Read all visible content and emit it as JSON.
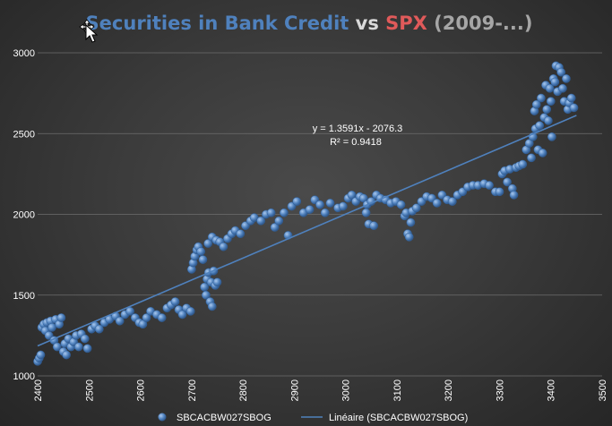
{
  "chart_data": {
    "type": "scatter",
    "title_parts": [
      {
        "text": "Securities in Bank Credit",
        "color": "#4f81bd"
      },
      {
        "text": " vs ",
        "color": "#d9d9d9"
      },
      {
        "text": "SPX",
        "color": "#e05a5a"
      },
      {
        "text": " (2009-...)",
        "color": "#a6a6a6"
      }
    ],
    "xlim": [
      2400,
      3500
    ],
    "ylim": [
      1000,
      3000
    ],
    "x_ticks": [
      "2400",
      "2500",
      "2600",
      "2700",
      "2800",
      "2900",
      "3000",
      "3100",
      "3200",
      "3300",
      "3400",
      "3500"
    ],
    "y_ticks": [
      "1000",
      "1500",
      "2000",
      "2500",
      "3000"
    ],
    "gridlines": "horizontal",
    "series": [
      {
        "name": "SBCACBW027SBOG",
        "color": "#4f81bd",
        "points": [
          [
            2400,
            1090
          ],
          [
            2403,
            1110
          ],
          [
            2406,
            1130
          ],
          [
            2408,
            1300
          ],
          [
            2412,
            1320
          ],
          [
            2415,
            1280
          ],
          [
            2418,
            1330
          ],
          [
            2422,
            1250
          ],
          [
            2425,
            1340
          ],
          [
            2428,
            1300
          ],
          [
            2432,
            1220
          ],
          [
            2435,
            1350
          ],
          [
            2438,
            1180
          ],
          [
            2442,
            1320
          ],
          [
            2446,
            1360
          ],
          [
            2450,
            1150
          ],
          [
            2453,
            1200
          ],
          [
            2456,
            1130
          ],
          [
            2460,
            1230
          ],
          [
            2465,
            1180
          ],
          [
            2470,
            1210
          ],
          [
            2475,
            1250
          ],
          [
            2480,
            1180
          ],
          [
            2485,
            1260
          ],
          [
            2492,
            1230
          ],
          [
            2497,
            1170
          ],
          [
            2505,
            1290
          ],
          [
            2512,
            1310
          ],
          [
            2520,
            1290
          ],
          [
            2530,
            1330
          ],
          [
            2540,
            1350
          ],
          [
            2552,
            1370
          ],
          [
            2560,
            1340
          ],
          [
            2570,
            1380
          ],
          [
            2580,
            1400
          ],
          [
            2590,
            1360
          ],
          [
            2598,
            1330
          ],
          [
            2605,
            1320
          ],
          [
            2612,
            1360
          ],
          [
            2620,
            1400
          ],
          [
            2632,
            1380
          ],
          [
            2642,
            1360
          ],
          [
            2652,
            1420
          ],
          [
            2660,
            1440
          ],
          [
            2668,
            1460
          ],
          [
            2675,
            1410
          ],
          [
            2682,
            1380
          ],
          [
            2690,
            1420
          ],
          [
            2698,
            1400
          ],
          [
            2700,
            1660
          ],
          [
            2703,
            1700
          ],
          [
            2706,
            1740
          ],
          [
            2710,
            1780
          ],
          [
            2713,
            1800
          ],
          [
            2718,
            1770
          ],
          [
            2722,
            1720
          ],
          [
            2725,
            1550
          ],
          [
            2728,
            1500
          ],
          [
            2730,
            1600
          ],
          [
            2733,
            1640
          ],
          [
            2736,
            1460
          ],
          [
            2738,
            1580
          ],
          [
            2740,
            1430
          ],
          [
            2743,
            1650
          ],
          [
            2746,
            1560
          ],
          [
            2750,
            1580
          ],
          [
            2732,
            1820
          ],
          [
            2740,
            1860
          ],
          [
            2748,
            1840
          ],
          [
            2755,
            1830
          ],
          [
            2762,
            1800
          ],
          [
            2770,
            1850
          ],
          [
            2778,
            1880
          ],
          [
            2785,
            1900
          ],
          [
            2795,
            1880
          ],
          [
            2805,
            1930
          ],
          [
            2815,
            1960
          ],
          [
            2822,
            1980
          ],
          [
            2835,
            1960
          ],
          [
            2845,
            2000
          ],
          [
            2855,
            2010
          ],
          [
            2862,
            1920
          ],
          [
            2870,
            1960
          ],
          [
            2880,
            2010
          ],
          [
            2888,
            1870
          ],
          [
            2895,
            2050
          ],
          [
            2905,
            2080
          ],
          [
            2918,
            2010
          ],
          [
            2930,
            2030
          ],
          [
            2940,
            2090
          ],
          [
            2950,
            2060
          ],
          [
            2960,
            2010
          ],
          [
            2970,
            2070
          ],
          [
            2985,
            2040
          ],
          [
            2995,
            2050
          ],
          [
            3005,
            2100
          ],
          [
            3012,
            2120
          ],
          [
            3020,
            2080
          ],
          [
            3028,
            2110
          ],
          [
            3035,
            2100
          ],
          [
            3040,
            2010
          ],
          [
            3042,
            2060
          ],
          [
            3045,
            1940
          ],
          [
            3050,
            2080
          ],
          [
            3055,
            1930
          ],
          [
            3060,
            2120
          ],
          [
            3068,
            2100
          ],
          [
            3078,
            2090
          ],
          [
            3088,
            2070
          ],
          [
            3098,
            2080
          ],
          [
            3108,
            2060
          ],
          [
            3115,
            1990
          ],
          [
            3118,
            2010
          ],
          [
            3121,
            1880
          ],
          [
            3124,
            1860
          ],
          [
            3127,
            1950
          ],
          [
            3130,
            2020
          ],
          [
            3138,
            2040
          ],
          [
            3148,
            2080
          ],
          [
            3158,
            2110
          ],
          [
            3168,
            2100
          ],
          [
            3178,
            2070
          ],
          [
            3188,
            2120
          ],
          [
            3198,
            2090
          ],
          [
            3208,
            2080
          ],
          [
            3218,
            2120
          ],
          [
            3228,
            2140
          ],
          [
            3238,
            2170
          ],
          [
            3248,
            2180
          ],
          [
            3258,
            2180
          ],
          [
            3270,
            2190
          ],
          [
            3280,
            2180
          ],
          [
            3292,
            2140
          ],
          [
            3300,
            2140
          ],
          [
            3305,
            2250
          ],
          [
            3310,
            2270
          ],
          [
            3315,
            2200
          ],
          [
            3320,
            2280
          ],
          [
            3325,
            2160
          ],
          [
            3328,
            2120
          ],
          [
            3332,
            2290
          ],
          [
            3338,
            2300
          ],
          [
            3345,
            2310
          ],
          [
            3352,
            2400
          ],
          [
            3358,
            2440
          ],
          [
            3362,
            2350
          ],
          [
            3365,
            2480
          ],
          [
            3368,
            2640
          ],
          [
            3370,
            2530
          ],
          [
            3372,
            2680
          ],
          [
            3375,
            2400
          ],
          [
            3378,
            2550
          ],
          [
            3381,
            2720
          ],
          [
            3384,
            2380
          ],
          [
            3387,
            2600
          ],
          [
            3390,
            2800
          ],
          [
            3392,
            2650
          ],
          [
            3395,
            2580
          ],
          [
            3398,
            2780
          ],
          [
            3400,
            2700
          ],
          [
            3402,
            2480
          ],
          [
            3405,
            2840
          ],
          [
            3408,
            2820
          ],
          [
            3410,
            2920
          ],
          [
            3413,
            2760
          ],
          [
            3416,
            2910
          ],
          [
            3420,
            2880
          ],
          [
            3423,
            2780
          ],
          [
            3426,
            2700
          ],
          [
            3430,
            2840
          ],
          [
            3433,
            2650
          ],
          [
            3436,
            2690
          ],
          [
            3440,
            2720
          ],
          [
            3445,
            2660
          ]
        ]
      }
    ],
    "trendline": {
      "name": "Linéaire (SBCACBW027SBOG)",
      "slope": 1.3591,
      "intercept": -2076.3,
      "x_range": [
        2400,
        3450
      ],
      "color": "#4f81bd"
    },
    "annotations": [
      "y = 1.3591x - 2076.3",
      "R² = 0.9418"
    ],
    "legend": {
      "placement": "bottom",
      "entries": [
        "SBCACBW027SBOG",
        "Linéaire (SBCACBW027SBOG)"
      ]
    }
  }
}
